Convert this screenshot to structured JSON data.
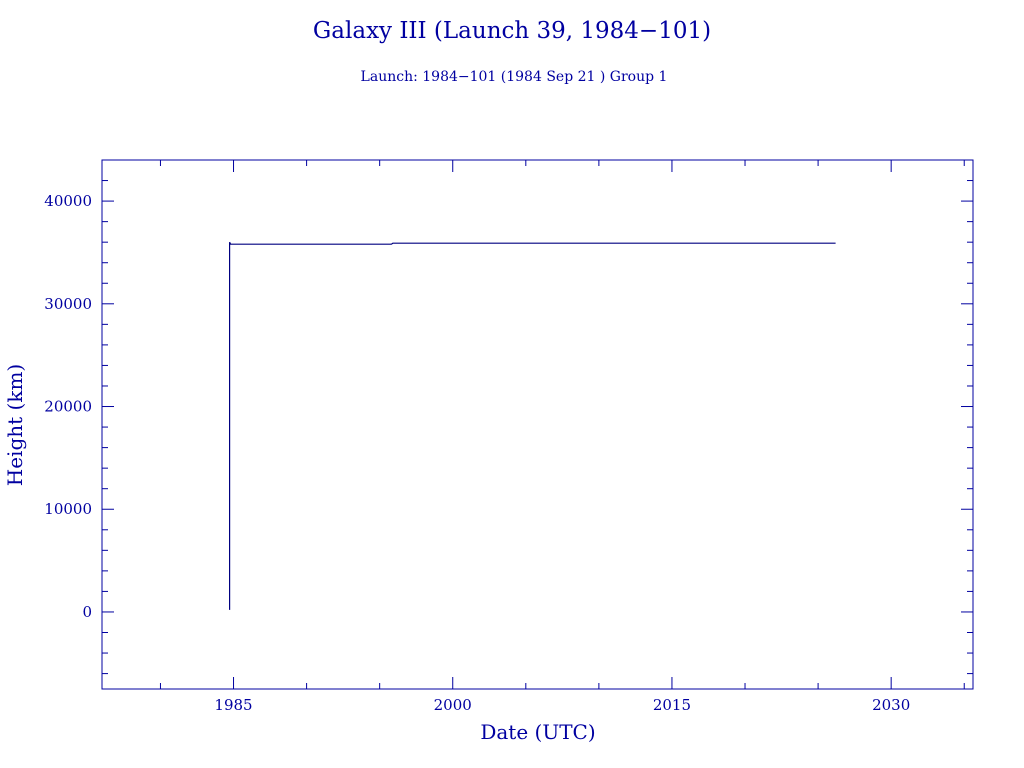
{
  "chart_data": {
    "type": "line",
    "title": "Galaxy III (Launch 39, 1984−101)",
    "subtitle": "Launch: 1984−101  (1984 Sep 21 )  Group 1",
    "xlabel": "Date (UTC)",
    "ylabel": "Height (km)",
    "xlim": [
      1976.0,
      2035.6
    ],
    "ylim": [
      -7500,
      44000
    ],
    "x_ticks": [
      1985,
      2000,
      2015,
      2030
    ],
    "x_tick_labels": [
      "1985",
      "2000",
      "2015",
      "2030"
    ],
    "y_ticks": [
      0,
      10000,
      20000,
      30000,
      40000
    ],
    "y_tick_labels": [
      "0",
      "10000",
      "20000",
      "30000",
      "40000"
    ],
    "grid": false,
    "series": [
      {
        "points": [
          [
            1984.73,
            200
          ],
          [
            1984.73,
            36000
          ],
          [
            1984.8,
            35800
          ],
          [
            1995.8,
            35800
          ],
          [
            1995.9,
            35900
          ],
          [
            2026.2,
            35900
          ]
        ]
      }
    ],
    "colors": {
      "axis": "#0000a0",
      "line": "#000080",
      "text": "#0000a0"
    }
  }
}
